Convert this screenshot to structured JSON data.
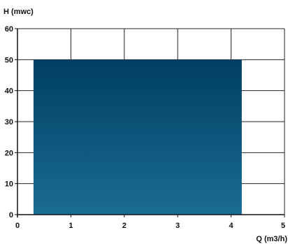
{
  "chart_data": {
    "type": "area",
    "title": "",
    "xlabel": "Q (m3/h)",
    "ylabel": "H (mwc)",
    "xlim": [
      0,
      5
    ],
    "ylim": [
      0,
      60
    ],
    "x_ticks": [
      "0",
      "1",
      "2",
      "3",
      "4",
      "5"
    ],
    "y_ticks": [
      "0",
      "10",
      "20",
      "30",
      "40",
      "50",
      "60"
    ],
    "grid": true,
    "legend": "none",
    "series": [
      {
        "x": [
          0.3,
          0.3,
          4.2,
          4.2
        ],
        "y": [
          0,
          50,
          50,
          0
        ],
        "color_top": "#003f63",
        "color_bottom": "#1b6c92"
      }
    ]
  }
}
